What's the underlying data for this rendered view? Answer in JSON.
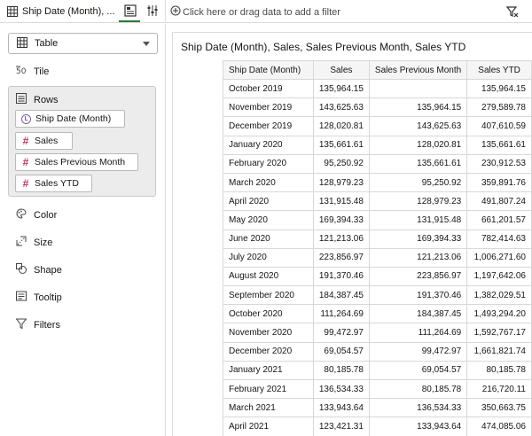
{
  "tab": {
    "title": "Ship Date (Month), ..."
  },
  "filterbar": {
    "add_text": "Click here or drag data to add a filter"
  },
  "grammar": {
    "viz_type": "Table",
    "tile": "Tile",
    "rows_label": "Rows",
    "rows_items": [
      {
        "label": "Ship Date (Month)",
        "kind": "date"
      },
      {
        "label": "Sales",
        "kind": "measure"
      },
      {
        "label": "Sales Previous Month",
        "kind": "measure"
      },
      {
        "label": "Sales YTD",
        "kind": "measure"
      }
    ],
    "color": "Color",
    "size": "Size",
    "shape": "Shape",
    "tooltip": "Tooltip",
    "filters": "Filters"
  },
  "canvas": {
    "title": "Ship Date (Month), Sales, Sales Previous Month, Sales YTD",
    "columns": [
      "Ship Date (Month)",
      "Sales",
      "Sales Previous Month",
      "Sales YTD"
    ],
    "rows": [
      [
        "October 2019",
        "135,964.15",
        "",
        "135,964.15"
      ],
      [
        "November 2019",
        "143,625.63",
        "135,964.15",
        "279,589.78"
      ],
      [
        "December 2019",
        "128,020.81",
        "143,625.63",
        "407,610.59"
      ],
      [
        "January 2020",
        "135,661.61",
        "128,020.81",
        "135,661.61"
      ],
      [
        "February 2020",
        "95,250.92",
        "135,661.61",
        "230,912.53"
      ],
      [
        "March 2020",
        "128,979.23",
        "95,250.92",
        "359,891.76"
      ],
      [
        "April 2020",
        "131,915.48",
        "128,979.23",
        "491,807.24"
      ],
      [
        "May 2020",
        "169,394.33",
        "131,915.48",
        "661,201.57"
      ],
      [
        "June 2020",
        "121,213.06",
        "169,394.33",
        "782,414.63"
      ],
      [
        "July 2020",
        "223,856.97",
        "121,213.06",
        "1,006,271.60"
      ],
      [
        "August 2020",
        "191,370.46",
        "223,856.97",
        "1,197,642.06"
      ],
      [
        "September 2020",
        "184,387.45",
        "191,370.46",
        "1,382,029.51"
      ],
      [
        "October 2020",
        "111,264.69",
        "184,387.45",
        "1,493,294.20"
      ],
      [
        "November 2020",
        "99,472.97",
        "111,264.69",
        "1,592,767.17"
      ],
      [
        "December 2020",
        "69,054.57",
        "99,472.97",
        "1,661,821.74"
      ],
      [
        "January 2021",
        "80,185.78",
        "69,054.57",
        "80,185.78"
      ],
      [
        "February 2021",
        "136,534.33",
        "80,185.78",
        "216,720.11"
      ],
      [
        "March 2021",
        "133,943.64",
        "136,534.33",
        "350,663.75"
      ],
      [
        "April 2021",
        "123,421.31",
        "133,943.64",
        "474,085.06"
      ]
    ]
  },
  "icons": {
    "tab": "table-grid-icon",
    "view": "visualize-icon",
    "properties": "properties-icon",
    "add_filter": "plus-circle-icon",
    "filter_toggle": "filter-icon"
  },
  "colors": {
    "accent": "#2a7a3a",
    "measure": "#c2345a",
    "date": "#7b5ea7"
  }
}
